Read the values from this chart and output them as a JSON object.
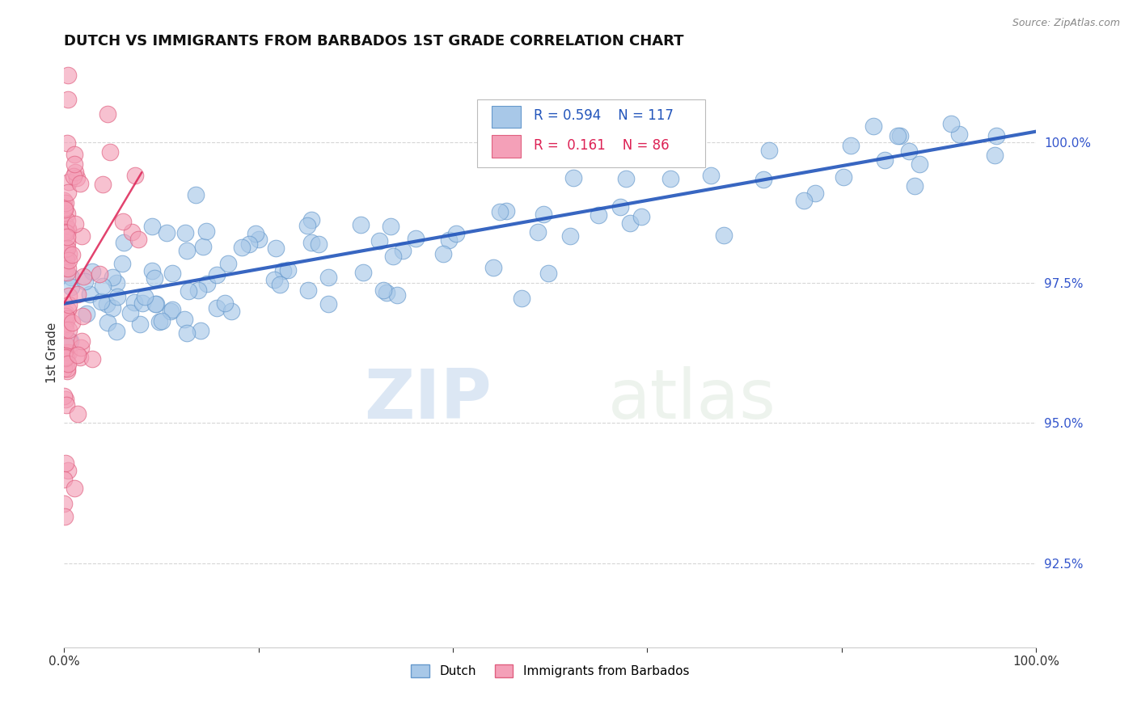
{
  "title": "DUTCH VS IMMIGRANTS FROM BARBADOS 1ST GRADE CORRELATION CHART",
  "source": "Source: ZipAtlas.com",
  "ylabel": "1st Grade",
  "xlim": [
    0,
    100
  ],
  "ylim": [
    91.0,
    101.5
  ],
  "yticks": [
    92.5,
    95.0,
    97.5,
    100.0
  ],
  "ytick_labels": [
    "92.5%",
    "95.0%",
    "97.5%",
    "100.0%"
  ],
  "dutch_color": "#a8c8e8",
  "barbados_color": "#f4a0b8",
  "dutch_edge_color": "#6699cc",
  "barbados_edge_color": "#e06080",
  "dutch_line_color": "#2255bb",
  "barbados_line_color": "#dd2255",
  "legend_dutch_label": "Dutch",
  "legend_barbados_label": "Immigrants from Barbados",
  "R_dutch": 0.594,
  "N_dutch": 117,
  "R_barbados": 0.161,
  "N_barbados": 86,
  "watermark_zip": "ZIP",
  "watermark_atlas": "atlas",
  "background_color": "#ffffff",
  "grid_color": "#cccccc",
  "title_fontsize": 13,
  "source_fontsize": 9
}
